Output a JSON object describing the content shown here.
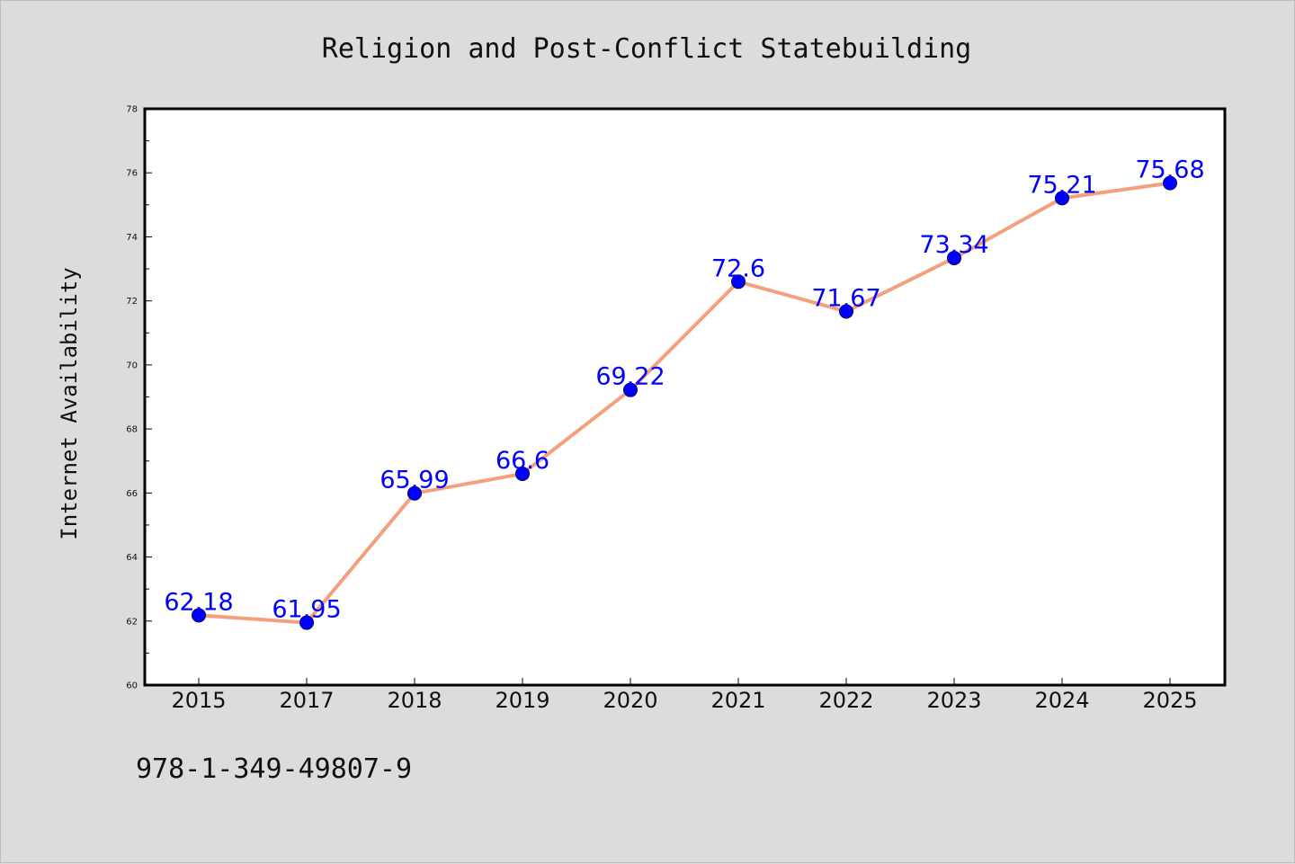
{
  "colors": {
    "background": "#dcdcdc",
    "plot_background": "#ffffff",
    "line": "#f4a07e",
    "marker_fill": "#0000ff",
    "marker_edge": "#000066",
    "data_label": "#0000ff"
  },
  "footnote": "978-1-349-49807-9",
  "chart_data": {
    "type": "line",
    "title": "Religion and Post-Conflict Statebuilding",
    "xlabel": "",
    "ylabel": "Internet Availability",
    "categories": [
      "2015",
      "2017",
      "2018",
      "2019",
      "2020",
      "2021",
      "2022",
      "2023",
      "2024",
      "2025"
    ],
    "values": [
      62.18,
      61.95,
      65.99,
      66.6,
      69.22,
      72.6,
      71.67,
      73.34,
      75.21,
      75.68
    ],
    "data_labels": [
      "62.18",
      "61.95",
      "65.99",
      "66.6",
      "69.22",
      "72.6",
      "71.67",
      "73.34",
      "75.21",
      "75.68"
    ],
    "ylim": [
      60,
      78
    ],
    "yticks": [
      "60",
      "62",
      "64",
      "66",
      "68",
      "70",
      "72",
      "74",
      "76",
      "78"
    ],
    "grid": false,
    "legend": "none",
    "marker": "circle"
  }
}
